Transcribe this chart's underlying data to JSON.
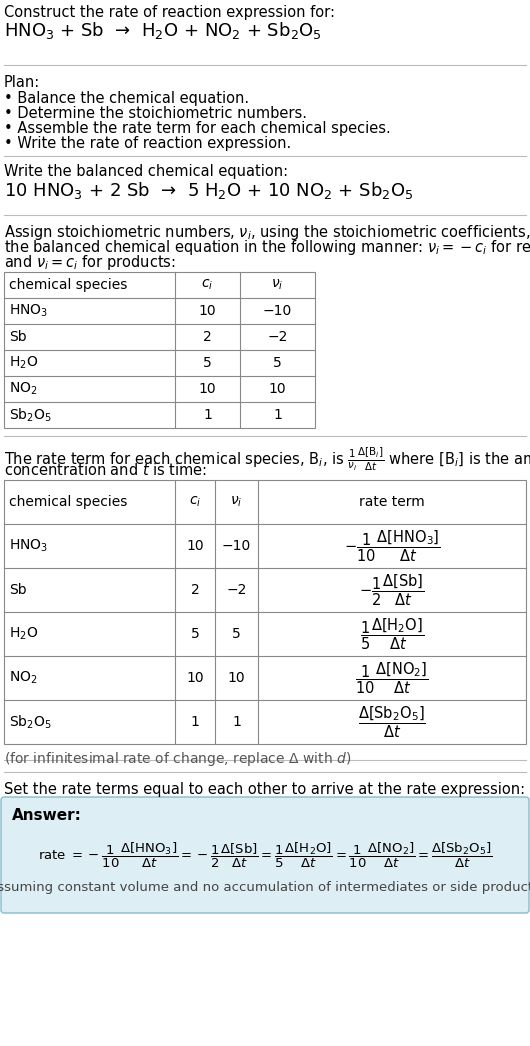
{
  "bg_color": "#ffffff",
  "title_text": "Construct the rate of reaction expression for:",
  "reaction_unbalanced": "HNO$_3$ + Sb  →  H$_2$O + NO$_2$ + Sb$_2$O$_5$",
  "plan_header": "Plan:",
  "plan_items": [
    "• Balance the chemical equation.",
    "• Determine the stoichiometric numbers.",
    "• Assemble the rate term for each chemical species.",
    "• Write the rate of reaction expression."
  ],
  "balanced_header": "Write the balanced chemical equation:",
  "balanced_eq": "10 HNO$_3$ + 2 Sb  →  5 H$_2$O + 10 NO$_2$ + Sb$_2$O$_5$",
  "stoich_intro_lines": [
    "Assign stoichiometric numbers, $\\nu_i$, using the stoichiometric coefficients, $c_i$, from",
    "the balanced chemical equation in the following manner: $\\nu_i = -c_i$ for reactants",
    "and $\\nu_i = c_i$ for products:"
  ],
  "table1_headers": [
    "chemical species",
    "$c_i$",
    "$\\nu_i$"
  ],
  "table1_rows": [
    [
      "HNO$_3$",
      "10",
      "−10"
    ],
    [
      "Sb",
      "2",
      "−2"
    ],
    [
      "H$_2$O",
      "5",
      "5"
    ],
    [
      "NO$_2$",
      "10",
      "10"
    ],
    [
      "Sb$_2$O$_5$",
      "1",
      "1"
    ]
  ],
  "table2_headers": [
    "chemical species",
    "$c_i$",
    "$\\nu_i$",
    "rate term"
  ],
  "table2_rows": [
    [
      "HNO$_3$",
      "10",
      "−10",
      "$-\\dfrac{1}{10}\\dfrac{\\Delta[\\mathrm{HNO_3}]}{\\Delta t}$"
    ],
    [
      "Sb",
      "2",
      "−2",
      "$-\\dfrac{1}{2}\\dfrac{\\Delta[\\mathrm{Sb}]}{\\Delta t}$"
    ],
    [
      "H$_2$O",
      "5",
      "5",
      "$\\dfrac{1}{5}\\dfrac{\\Delta[\\mathrm{H_2O}]}{\\Delta t}$"
    ],
    [
      "NO$_2$",
      "10",
      "10",
      "$\\dfrac{1}{10}\\dfrac{\\Delta[\\mathrm{NO_2}]}{\\Delta t}$"
    ],
    [
      "Sb$_2$O$_5$",
      "1",
      "1",
      "$\\dfrac{\\Delta[\\mathrm{Sb_2O_5}]}{\\Delta t}$"
    ]
  ],
  "infinitesimal_note": "(for infinitesimal rate of change, replace Δ with $d$)",
  "set_equal_text": "Set the rate terms equal to each other to arrive at the rate expression:",
  "answer_label": "Answer:",
  "answer_note": "(assuming constant volume and no accumulation of intermediates or side products)"
}
